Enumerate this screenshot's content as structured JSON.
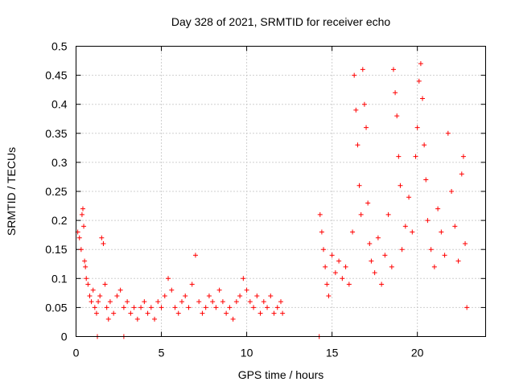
{
  "chart_data": {
    "type": "scatter",
    "title": "Day 328 of 2021, SRMTID for receiver echo",
    "xlabel": "GPS time / hours",
    "ylabel": "SRMTID / TECUs",
    "xlim": [
      0,
      24
    ],
    "ylim": [
      0,
      0.5
    ],
    "x_ticks": [
      0,
      5,
      10,
      15,
      20
    ],
    "x_tick_labels": [
      "0",
      "5",
      "10",
      "15",
      "20"
    ],
    "y_ticks": [
      0,
      0.05,
      0.1,
      0.15,
      0.2,
      0.25,
      0.3,
      0.35,
      0.4,
      0.45,
      0.5
    ],
    "y_tick_labels": [
      "0",
      "0.05",
      "0.1",
      "0.15",
      "0.2",
      "0.25",
      "0.3",
      "0.35",
      "0.4",
      "0.45",
      "0.5"
    ],
    "grid": true,
    "marker": "+",
    "color": "#ff0000",
    "series": [
      {
        "name": "receiver echo",
        "points": [
          [
            0.1,
            0.18
          ],
          [
            0.2,
            0.17
          ],
          [
            0.3,
            0.15
          ],
          [
            0.35,
            0.21
          ],
          [
            0.4,
            0.22
          ],
          [
            0.45,
            0.19
          ],
          [
            0.5,
            0.13
          ],
          [
            0.55,
            0.12
          ],
          [
            0.6,
            0.1
          ],
          [
            0.7,
            0.09
          ],
          [
            0.8,
            0.07
          ],
          [
            0.9,
            0.06
          ],
          [
            1.0,
            0.08
          ],
          [
            1.1,
            0.05
          ],
          [
            1.2,
            0.04
          ],
          [
            1.3,
            0.06
          ],
          [
            1.4,
            0.07
          ],
          [
            1.5,
            0.17
          ],
          [
            1.6,
            0.16
          ],
          [
            1.7,
            0.09
          ],
          [
            1.8,
            0.05
          ],
          [
            1.9,
            0.03
          ],
          [
            2.0,
            0.06
          ],
          [
            2.2,
            0.04
          ],
          [
            2.4,
            0.07
          ],
          [
            2.6,
            0.08
          ],
          [
            2.8,
            0.05
          ],
          [
            3.0,
            0.06
          ],
          [
            3.2,
            0.04
          ],
          [
            3.4,
            0.05
          ],
          [
            3.6,
            0.03
          ],
          [
            3.8,
            0.05
          ],
          [
            4.0,
            0.06
          ],
          [
            4.2,
            0.04
          ],
          [
            4.4,
            0.05
          ],
          [
            4.6,
            0.03
          ],
          [
            4.8,
            0.06
          ],
          [
            5.0,
            0.05
          ],
          [
            5.2,
            0.07
          ],
          [
            5.4,
            0.1
          ],
          [
            5.6,
            0.08
          ],
          [
            5.8,
            0.05
          ],
          [
            6.0,
            0.04
          ],
          [
            6.2,
            0.06
          ],
          [
            6.4,
            0.07
          ],
          [
            6.6,
            0.05
          ],
          [
            6.8,
            0.09
          ],
          [
            7.0,
            0.14
          ],
          [
            7.2,
            0.06
          ],
          [
            7.4,
            0.04
          ],
          [
            7.6,
            0.05
          ],
          [
            7.8,
            0.07
          ],
          [
            8.0,
            0.06
          ],
          [
            8.2,
            0.05
          ],
          [
            8.4,
            0.08
          ],
          [
            8.6,
            0.06
          ],
          [
            8.8,
            0.04
          ],
          [
            9.0,
            0.05
          ],
          [
            9.2,
            0.03
          ],
          [
            9.4,
            0.06
          ],
          [
            9.6,
            0.07
          ],
          [
            9.8,
            0.1
          ],
          [
            10.0,
            0.08
          ],
          [
            10.2,
            0.06
          ],
          [
            10.4,
            0.05
          ],
          [
            10.6,
            0.07
          ],
          [
            10.8,
            0.04
          ],
          [
            11.0,
            0.06
          ],
          [
            11.2,
            0.05
          ],
          [
            11.4,
            0.07
          ],
          [
            11.6,
            0.04
          ],
          [
            11.8,
            0.05
          ],
          [
            12.0,
            0.06
          ],
          [
            12.1,
            0.04
          ],
          [
            1.25,
            0.0
          ],
          [
            2.8,
            0.0
          ],
          [
            14.25,
            0.0
          ],
          [
            14.3,
            0.21
          ],
          [
            14.4,
            0.18
          ],
          [
            14.5,
            0.15
          ],
          [
            14.6,
            0.12
          ],
          [
            14.7,
            0.09
          ],
          [
            14.8,
            0.07
          ],
          [
            15.0,
            0.14
          ],
          [
            15.2,
            0.11
          ],
          [
            15.4,
            0.13
          ],
          [
            15.6,
            0.1
          ],
          [
            15.8,
            0.12
          ],
          [
            16.0,
            0.09
          ],
          [
            16.2,
            0.18
          ],
          [
            16.3,
            0.45
          ],
          [
            16.4,
            0.39
          ],
          [
            16.5,
            0.33
          ],
          [
            16.6,
            0.26
          ],
          [
            16.7,
            0.21
          ],
          [
            16.8,
            0.46
          ],
          [
            16.9,
            0.4
          ],
          [
            17.0,
            0.36
          ],
          [
            17.1,
            0.23
          ],
          [
            17.2,
            0.16
          ],
          [
            17.3,
            0.13
          ],
          [
            17.5,
            0.11
          ],
          [
            17.7,
            0.17
          ],
          [
            17.9,
            0.09
          ],
          [
            18.1,
            0.14
          ],
          [
            18.3,
            0.21
          ],
          [
            18.5,
            0.12
          ],
          [
            18.6,
            0.46
          ],
          [
            18.7,
            0.42
          ],
          [
            18.8,
            0.38
          ],
          [
            18.9,
            0.31
          ],
          [
            19.0,
            0.26
          ],
          [
            19.1,
            0.15
          ],
          [
            19.3,
            0.19
          ],
          [
            19.5,
            0.24
          ],
          [
            19.7,
            0.18
          ],
          [
            19.9,
            0.31
          ],
          [
            20.0,
            0.36
          ],
          [
            20.1,
            0.44
          ],
          [
            20.2,
            0.47
          ],
          [
            20.3,
            0.41
          ],
          [
            20.4,
            0.33
          ],
          [
            20.5,
            0.27
          ],
          [
            20.6,
            0.2
          ],
          [
            20.8,
            0.15
          ],
          [
            21.0,
            0.12
          ],
          [
            21.2,
            0.22
          ],
          [
            21.4,
            0.18
          ],
          [
            21.6,
            0.14
          ],
          [
            21.8,
            0.35
          ],
          [
            22.0,
            0.25
          ],
          [
            22.2,
            0.19
          ],
          [
            22.4,
            0.13
          ],
          [
            22.6,
            0.28
          ],
          [
            22.7,
            0.31
          ],
          [
            22.8,
            0.16
          ],
          [
            22.9,
            0.05
          ]
        ]
      }
    ]
  }
}
